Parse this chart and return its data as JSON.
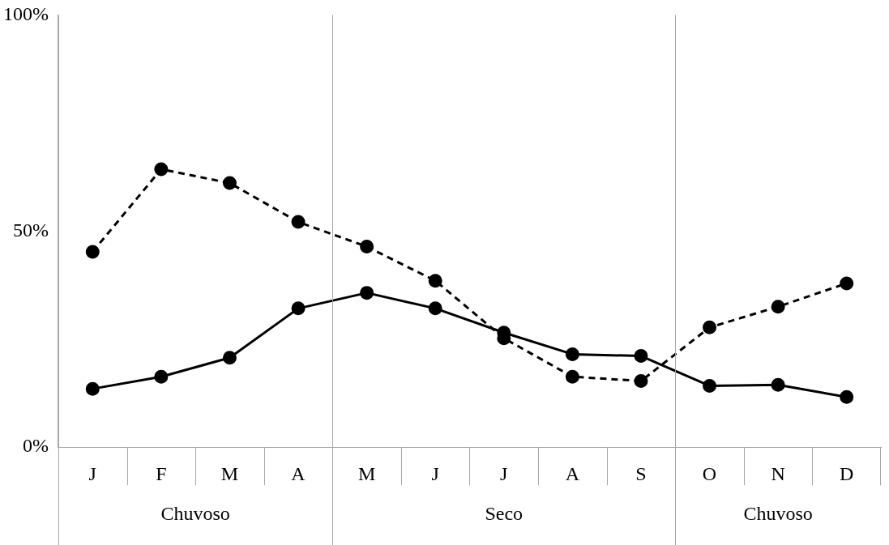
{
  "chart_data": {
    "type": "line",
    "categories": [
      "J",
      "F",
      "M",
      "A",
      "M",
      "J",
      "J",
      "A",
      "S",
      "O",
      "N",
      "D"
    ],
    "series": [
      {
        "color": "#000000",
        "line_style": "solid",
        "values": [
          13.5,
          16.3,
          20.7,
          32.1,
          35.7,
          32.1,
          26.5,
          21.5,
          21.1,
          14.2,
          14.4,
          11.6
        ]
      },
      {
        "color": "#000000",
        "line_style": "dashed",
        "values": [
          45.2,
          64.3,
          61.1,
          52.1,
          46.4,
          38.5,
          25.2,
          16.3,
          15.3,
          27.7,
          32.5,
          37.9
        ]
      }
    ],
    "marker": "circle",
    "ylim": [
      0,
      100
    ],
    "yticks": [
      {
        "value": 0,
        "label": "0%"
      },
      {
        "value": 50,
        "label": "50%"
      },
      {
        "value": 100,
        "label": "100%"
      }
    ],
    "annotations": [
      "Chuvoso",
      "Seco",
      "Chuvoso"
    ]
  }
}
